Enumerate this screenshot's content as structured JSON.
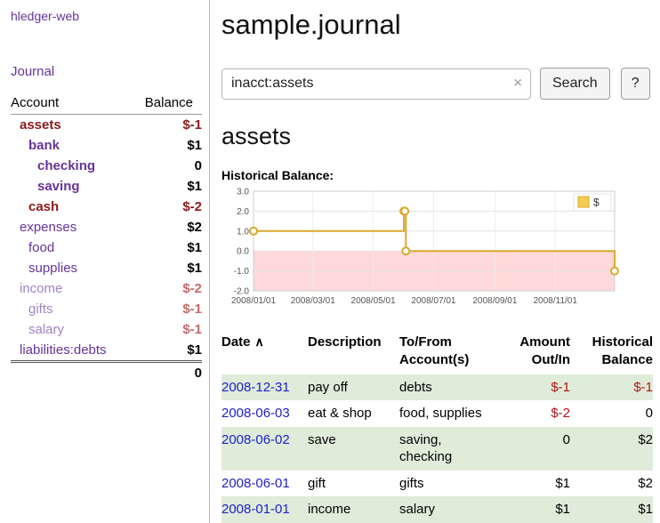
{
  "palette": {
    "purple": "#663399",
    "purple-muted": "#a083c0",
    "red-strong": "#8b1a1a",
    "red-muted": "#c46a6a",
    "link-blue": "#2020cc",
    "neg-red": "#b31414",
    "row-green": "#dfecd9",
    "gold": "#d9a92f",
    "gold-fill": "#f0cd52",
    "pink-region": "#ffd9d9"
  },
  "app": {
    "title": "hledger-web"
  },
  "sidebar": {
    "journal_link": "Journal",
    "accounts": {
      "header_account": "Account",
      "header_balance": "Balance",
      "rows": [
        {
          "name": "assets",
          "balance": "$-1",
          "depth": 1,
          "bold": true,
          "name_color": "red-strong",
          "balance_color": "red-strong"
        },
        {
          "name": "bank",
          "balance": "$1",
          "depth": 2,
          "bold": true,
          "name_color": "purple",
          "balance_color": ""
        },
        {
          "name": "checking",
          "balance": "0",
          "depth": 3,
          "bold": true,
          "name_color": "purple",
          "balance_color": ""
        },
        {
          "name": "saving",
          "balance": "$1",
          "depth": 3,
          "bold": true,
          "name_color": "purple",
          "balance_color": ""
        },
        {
          "name": "cash",
          "balance": "$-2",
          "depth": 2,
          "bold": true,
          "name_color": "red-strong",
          "balance_color": "red-strong"
        },
        {
          "name": "expenses",
          "balance": "$2",
          "depth": 1,
          "bold": false,
          "name_color": "purple",
          "balance_color": ""
        },
        {
          "name": "food",
          "balance": "$1",
          "depth": 2,
          "bold": false,
          "name_color": "purple",
          "balance_color": ""
        },
        {
          "name": "supplies",
          "balance": "$1",
          "depth": 2,
          "bold": false,
          "name_color": "purple",
          "balance_color": ""
        },
        {
          "name": "income",
          "balance": "$-2",
          "depth": 1,
          "bold": false,
          "name_color": "purple-muted",
          "balance_color": "red-muted"
        },
        {
          "name": "gifts",
          "balance": "$-1",
          "depth": 2,
          "bold": false,
          "name_color": "purple-muted",
          "balance_color": "red-muted"
        },
        {
          "name": "salary",
          "balance": "$-1",
          "depth": 2,
          "bold": false,
          "name_color": "purple-muted",
          "balance_color": "red-muted"
        },
        {
          "name": "liabilities:debts",
          "balance": "$1",
          "depth": 1,
          "bold": false,
          "name_color": "purple",
          "balance_color": ""
        }
      ],
      "total": "0"
    }
  },
  "main": {
    "title": "sample.journal",
    "search": {
      "value": "inacct:assets",
      "clear": "×",
      "button": "Search",
      "help": "?"
    },
    "account_heading": "assets",
    "chart_label": "Historical Balance:"
  },
  "chart_data": {
    "type": "line",
    "title": "Historical Balance",
    "step": "after",
    "x_start": "2008-01-01",
    "x_end": "2008-12-31",
    "x_ticks": [
      "2008/01/01",
      "2008/03/01",
      "2008/05/01",
      "2008/07/01",
      "2008/09/01",
      "2008/11/01"
    ],
    "y_ticks": [
      3.0,
      2.0,
      1.0,
      0.0,
      -1.0,
      -2.0
    ],
    "ylim": [
      -2,
      3
    ],
    "grid": true,
    "legend": {
      "position": "top-right",
      "entries": [
        "$"
      ]
    },
    "series": [
      {
        "name": "$",
        "points": [
          {
            "x": "2008-01-01",
            "y": 1
          },
          {
            "x": "2008-06-01",
            "y": 2
          },
          {
            "x": "2008-06-02",
            "y": 2
          },
          {
            "x": "2008-06-03",
            "y": 0
          },
          {
            "x": "2008-12-31",
            "y": -1
          }
        ]
      }
    ]
  },
  "register": {
    "headers": [
      "Date",
      "Description",
      "To/From Account(s)",
      "Amount Out/In",
      "Historical Balance"
    ],
    "sort_indicator": "∧",
    "rows": [
      {
        "date": "2008-12-31",
        "description": "pay off",
        "accounts": "debts",
        "amount": "$-1",
        "balance": "$-1",
        "amount_negative": true,
        "balance_negative": true,
        "shaded": true
      },
      {
        "date": "2008-06-03",
        "description": "eat & shop",
        "accounts": "food, supplies",
        "amount": "$-2",
        "balance": "0",
        "amount_negative": true,
        "balance_negative": false,
        "shaded": false
      },
      {
        "date": "2008-06-02",
        "description": "save",
        "accounts": "saving, checking",
        "amount": "0",
        "balance": "$2",
        "amount_negative": false,
        "balance_negative": false,
        "shaded": true
      },
      {
        "date": "2008-06-01",
        "description": "gift",
        "accounts": "gifts",
        "amount": "$1",
        "balance": "$2",
        "amount_negative": false,
        "balance_negative": false,
        "shaded": false
      },
      {
        "date": "2008-01-01",
        "description": "income",
        "accounts": "salary",
        "amount": "$1",
        "balance": "$1",
        "amount_negative": false,
        "balance_negative": false,
        "shaded": true
      }
    ]
  }
}
